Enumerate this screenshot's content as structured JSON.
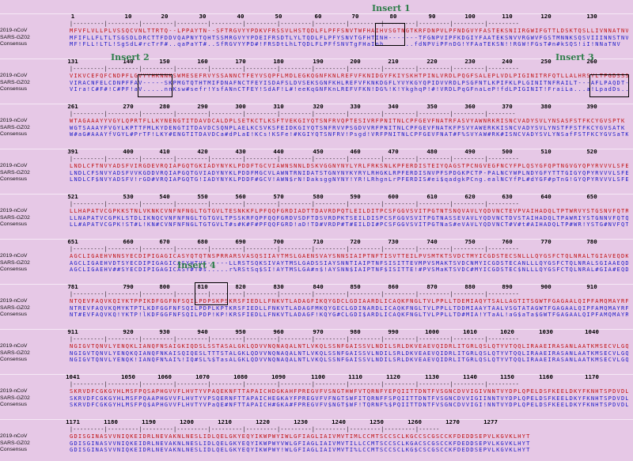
{
  "labels": {
    "seq1": "2019-nCoV",
    "seq2": "SARS-GZ02",
    "consensus": "Consensus"
  },
  "inserts": [
    {
      "label": "Insert 1",
      "block": 0
    },
    {
      "label": "Insert 2",
      "block": 1
    },
    {
      "label": "Insert 3",
      "block": 1
    },
    {
      "label": "Insert 4",
      "block": 5
    }
  ],
  "blocks": [
    {
      "ticks": [
        "1",
        "10",
        "20",
        "30",
        "40",
        "50",
        "60",
        "70",
        "80",
        "90",
        "100",
        "110",
        "120",
        "130"
      ],
      "seq1": "MFVFLVLLPLVSSQCVNLTTRTQ--LPPAYTN--SFTRGVYYPDKVFRSSVLHSTQDLFLPFFSNVTWFHAIHVSGTNGTKRFDNPVLPFNDGVYFASTEKSNIIRGWIFGTTLDSKTQSLLIVNNATNV",
      "seq2": "MFIFLLFLTLTSGSDLDRCTTFDDVQAPNYTQHTSSMRGVYYPDEIFRSDTLYLTQDLFLPFYSNVTGFHTINH-------TFGNPVIPFKDGIYFAATEKSNVVRGWVFGSTMNNKSQSVIIINNSTNV",
      "cons": "MF!FLL!LTL!SgSdL#rcTrF#..qaPaYT#..SfRGVYYPD#!FRSDtLhLTQDLFLPFfSNVTgFHaInh.......fdNPViPFnDG!YFAaTEKSN!!RGW!FGsT#n#kSQS!iI!NNaTNV"
    },
    {
      "ticks": [
        "131",
        "140",
        "150",
        "160",
        "170",
        "180",
        "190",
        "200",
        "210",
        "220",
        "230",
        "240",
        "250",
        "260"
      ],
      "seq1": "VIKVCEFQFCNDPFLGVYYHKNNKSWMESEFRVYSSANNCTFEYVSQPFLMDLEGKQGNFKNLREFVFKNIDGYFKIYSKHTPINLVRDLPQGFSALEPLVDLPIGINITRFQTLLALHRSYLTPGDSSSG",
      "seq2": "VIRACNFELCDNPFFAV-----SKPMGTQTHTMIFDNAFNCTFEYISDAFSLDVSEKSGNFKHLREFVFKNKDGFLYVYKGYQPIDVVRDLPSGFNTLKPIFKLPLGINITNFRAILT---AFLPAQDT--",
      "cons": "VIra!C#F#!C#PF!aV.....nnKsw#sefr!YsfANnCTFEY!SdAF!L#!eeKqGNFKnLREFVFKN!DG%!K!YkghqP!#!VRDLPqGFnaLeP!fdLPIGINIT!FraiLa...a!LpadDs.."
    },
    {
      "ticks": [
        "261",
        "270",
        "280",
        "290",
        "300",
        "310",
        "320",
        "330",
        "340",
        "350",
        "360",
        "370",
        "380",
        "390"
      ],
      "seq1": "WTAGAAAYYVGYLQPRTFLLKYNENGTITDAVDCALDPLSETKCTLKSFTVEKGIYQTSNFRVQPTESIVRFPNITNLCPFGEVFNATRFASVYAWNRKRISNCVADYSVLYNSASFSTFKCYGVSPTK",
      "seq2": "WGTSAAAYFVGYLKPTTFMLKYDENGTITDAVDCSQNPLAELKCSVKSFEIDKGIYQTSNFRVVPSGDVVRFPNITNLCPFGEVFNATKFPSVYAWERKKISNCVADYSVLYNSTFFSTFKCYGVSATK",
      "cons": "W#aG#AAAYfVGYL#PrTF!LKY#ENGTITDAVDCa#dPLaE!KCs!KSFe!#KGIYQTSNFRV!Psgd!VRFPNITNLCPFGEVFNAT#F%SVYAW#RK#ISNCVADYSVLYNSafFSTFKCYGVSaTK"
    },
    {
      "ticks": [
        "391",
        "400",
        "410",
        "420",
        "430",
        "440",
        "450",
        "460",
        "470",
        "480",
        "490",
        "500",
        "510",
        "520"
      ],
      "seq1": "LNDLCFTNVYADSFVIRGDEVRQIAPGQTGKIADYNYKLPDDFTGCVIAWNSNNLDSKVGGNYNYLYRLFRKSNLKPFERDISTEIYQAGSTPCNGVEGFNCYFPLQSYGFQPTNGVGYQPYRVVVLSFE",
      "seq2": "LNDLCFSNVYADSFVVKGDDVRQIAPGQTGVIADYNYKLPDDFMGCVLAWNTRNIDATSTGNYNYKYRYLRHGKLRPFERDISNVPFSPDGKPCTP-PALNCYWPLNDYGFYTTTGIGYQPYRVVVLSFE",
      "cons": "LNDLCF$NVYADSFV!rGD#VRQIAPGQTG!IADYNYKLPDDF#GCV!AWN$rN!DaksggNYNY!YR!LRhgnLrPFERDIS#ei$qadgkPCng.ealNCYfPL#dYGF#pTnG!GYQPYRVVVLSFE"
    },
    {
      "ticks": [
        "521",
        "530",
        "540",
        "550",
        "560",
        "570",
        "580",
        "590",
        "600",
        "610",
        "620",
        "630",
        "640",
        "650"
      ],
      "seq1": "LLHAPATVCGPKKSTNLVKNKCVNFNFNGLTGTGVLTESNKKFLPFQQFGRDIADTTDAVRDPQTLEILDITPCSFGGVSVITPGTNTSNQVAVLYQDVNCTEVPVAIHADQLTPTWRVYSTGSNVFQTR",
      "seq2": "LLNAPATVCGPKLSTDLIKNQCVNFNFNGLTGTGVLTPSSKRFQPFQQFGRDVSDFTDSVRDPKTSEILDISPCSFGGVSVITPGTNASSEVAVLYQDVNCTDVSTAIHADQLTPAWRIYSTGNNVFQTQ",
      "cons": "LL#APATVCGPK!ST#L!KN#CVNFNFNGLTGTGVLT#s#K#F#PFQQFGRD!aD!TD#VRDP#T#EILDI#PCSFGGVSVITPGTNaS#eVAVLYQDVNCT#V#t#AIHADQLTP#WR!YSTG#NVFQT#"
    },
    {
      "ticks": [
        "651",
        "660",
        "670",
        "680",
        "690",
        "700",
        "710",
        "720",
        "730",
        "740",
        "750",
        "760",
        "770",
        "780"
      ],
      "seq1": "AGCLIGAEHVNNSYECDIPIGAGICASYQTQTNSPRRARSVASQSIIAYTMSLGAENSVAYSNNSIAIPTNFTISVTTEILPVSMTKTSVDCTMYICGDSTECSNLLLQYGSFCTQLNRALTGIAVEQDK",
      "seq2": "AGCLIGAEHVDTSYECDIPIGAGICASYHTVS-----LLRSTSQKSIVAYTMSLGADSSIAYSNNTIAIPTNFSISITTEVMPVSMAKTSVDCNMYICGDSTECANLLLQYGSFCTQLNRALSGIAAEQDR",
      "cons": "AGCLIGAEHV##SYECDIPIGAGICASY#T#s.....r%RStSq$SI!AYTMSLGA#n$!AYSNN$IAIPTNF$ISITTE!#PVSMaKTSVDC#MYICGDSTEC$NLLLQYGSFCTQLNRAL#GIA#EQD#"
    },
    {
      "ticks": [
        "781",
        "790",
        "800",
        "810",
        "820",
        "830",
        "840",
        "850",
        "860",
        "870",
        "880",
        "890",
        "900",
        "910"
      ],
      "seq1": "NTQEVFAQVKQIYKTPPIKDFGGFNFSQILPDPSKPSKRSFIEDLLFNKVTLADAGFIKQYGDCLGDIAARDLICAQKFNGLTVLPPLLTDEMIAQYTSALLAGTITSGWTFGAGAALQIPFAMQMAYRF",
      "seq2": "NTREVFAQVKQMYKTPTLKDFGGFNFSQILPDPLKPTKRSFIEDLLFNKVTLADAGFMKQYGECLGDINARDLICAQKFNGLTVLPPLLTDDMIAAYTAALVSGTATAGWTFGAGAALQIPFAMQMAYRF",
      "cons": "NT#EVFAQVKQ!YKTP!lKDFGGFNFSQILPDP!KP!KRSFIEDLLFNKVTLADAGF!KQYG#CLGDI$ARDLICAQKFNGLTVLPPLLTD#MIA!YTaAL!aG$aTa$GWTFGAGAALQIPFAMQMAYRF"
    },
    {
      "ticks": [
        "911",
        "920",
        "930",
        "940",
        "950",
        "960",
        "970",
        "980",
        "990",
        "1000",
        "1010",
        "1020",
        "1030",
        "1040"
      ],
      "seq1": "NGIGVTQNVLYENQKLIANQFNSAIGKIQDSLSSTASALGKLQDVVNQNAQALNTLVKQLSSNFGAISSVLNDILSRLDKVEAEVQIDRLITGRLQSLQTYVTQQLIRAAEIRASANLAATKMSECVLGQ",
      "seq2": "NGIGVTQNVLYENQKQIANQFNKAISQIQESLTTTSTALGKLQDVVNQNAQALNTLVKQLSSNFGAISSVLNDILSRLDKVEAEVQIDRLITGRLQSLQTYVTQQLIRAAEIRASANLAATKMSECVLGQ",
      "cons": "NGIGVTQNVLYENQK!IANQFN%AI%!IQ#SL%$TasALGKLQDVVNQNAQALNTLVKQLSSNFGAISSVLNDILSRLDKVEAEVQIDRLITGRLQSLQTYVTQQLIRAAEIRASANLAATKMSECVLGQ"
    },
    {
      "ticks": [
        "1041",
        "1050",
        "1060",
        "1070",
        "1080",
        "1090",
        "1100",
        "1110",
        "1120",
        "1130",
        "1140",
        "1150",
        "1160",
        "1170"
      ],
      "seq1": "SKRVDFCGKGYHLMSFPQSAPHGVVFLHVTYVPAQEKNFTTAPAICHDGKAHFPREGVFVSNGTHWFVTQRNFYEPQIITTDNTFVSGNCDVVIGIVNNTVYDPLQPELDSFKEELDKYFKNHTSPDVDL",
      "seq2": "SKRVDFCGKGYHLMSFPQAAPHGVVFLHVTYVPSQERNFTTAPAICHEGKAYFPREGVFVFNGTSWFITQRNFFSPQIITTDNTFVSGNCDVVIGIINNTVYDPLQPELDSFKEELDKYFKNHTSPDVDL",
      "cons": "SKRVDFCGKGYHLMSFPQ$APHGVVFLHVTYVPaQE#NFTTAPAICH#GKA#FPREGVFV$NGT$WF!TQRNF%$PQIITTDNTFVSGNCDVVIGI!NNTVYDPLQPELDSFKEELDKYFKNHTSPDVDL"
    },
    {
      "ticks": [
        "1171",
        "1180",
        "1190",
        "1200",
        "1210",
        "1220",
        "1230",
        "1240",
        "1250",
        "1260",
        "1270",
        "1277"
      ],
      "seq1": "GDISGINASVVNIQKEIDRLNEVAKNLNESLIDLQELGKYEQYIKWPWYIWLGFIAGLIAIVMVTIMLCCMTSCCSCLKGCCSCGSCCKFDEDDSEPVLKGVKLHYT",
      "seq2": "GDISGINASVVNIQKEIDRLNEVAKNLNESLIDLQELGKYEQYIKWPWYVWLGFIAGLIAIVMVTILLCCMTSCCSCLKGACSCGSCCKFDEDDSEPVLKGVKLHYT",
      "cons": "GDISGINASVVNIQKEIDRLNEVAKNLNESLIDLQELGKYEQYIKWPWY!WLGFIAGLIAIVMVTI%LCCMTSCCSCLKG$CSCGSCCKFDEDDSEPVLKGVKLHYT"
    }
  ]
}
